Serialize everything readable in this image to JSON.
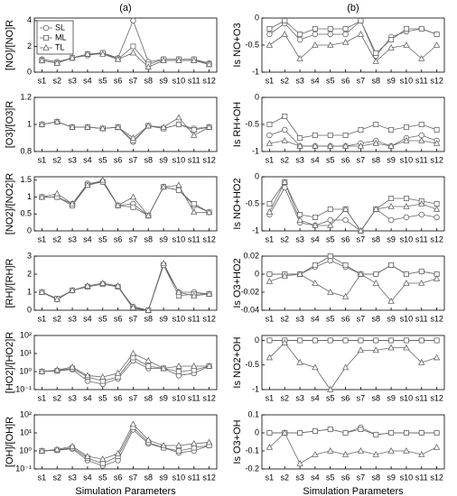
{
  "column_labels": [
    "(a)",
    "(b)"
  ],
  "chart_data": [
    {
      "type": "line",
      "ylabel": "[NO]/[NO]R",
      "categories": [
        "s1",
        "s2",
        "s3",
        "s4",
        "s5",
        "s6",
        "s7",
        "s8",
        "s9",
        "s10",
        "s11",
        "s12"
      ],
      "ylim": [
        0,
        4.2
      ],
      "yticks": [
        0,
        2,
        4
      ],
      "legend": "upper left",
      "series": [
        {
          "name": "SL",
          "marker": "circle",
          "color": "#666666",
          "values": [
            1,
            0.8,
            1.1,
            1.3,
            1.5,
            1.1,
            4,
            0.8,
            1,
            1,
            1,
            0.7
          ]
        },
        {
          "name": "ML",
          "marker": "square",
          "color": "#666666",
          "values": [
            0.9,
            0.7,
            1.1,
            1.4,
            1.5,
            1,
            2,
            0.6,
            1,
            1,
            1,
            0.6
          ]
        },
        {
          "name": "TL",
          "marker": "triangle",
          "color": "#666666",
          "values": [
            0.9,
            0.7,
            1.1,
            1.4,
            1.4,
            1,
            1.5,
            0.4,
            0.9,
            0.9,
            0.9,
            0.6
          ]
        }
      ]
    },
    {
      "type": "line",
      "ylabel": "[O3]/[O3]R",
      "categories": [
        "s1",
        "s2",
        "s3",
        "s4",
        "s5",
        "s6",
        "s7",
        "s8",
        "s9",
        "s10",
        "s11",
        "s12"
      ],
      "ylim": [
        0.8,
        1.2
      ],
      "yticks": [
        0.8,
        1,
        1.2
      ],
      "series": [
        {
          "name": "SL",
          "marker": "circle",
          "color": "#666666",
          "values": [
            1,
            1.02,
            0.98,
            0.98,
            0.97,
            0.98,
            0.87,
            0.99,
            0.97,
            1,
            0.97,
            0.98
          ]
        },
        {
          "name": "ML",
          "marker": "square",
          "color": "#666666",
          "values": [
            1,
            1.02,
            0.98,
            0.98,
            0.97,
            0.98,
            0.88,
            0.99,
            0.97,
            1,
            0.96,
            0.98
          ]
        },
        {
          "name": "TL",
          "marker": "triangle",
          "color": "#666666",
          "values": [
            1,
            1.02,
            0.98,
            0.98,
            0.97,
            0.98,
            0.9,
            0.99,
            0.98,
            1.05,
            0.92,
            0.98
          ]
        }
      ]
    },
    {
      "type": "line",
      "ylabel": "[NO2]/[NO2]R",
      "categories": [
        "s1",
        "s2",
        "s3",
        "s4",
        "s5",
        "s6",
        "s7",
        "s8",
        "s9",
        "s10",
        "s11",
        "s12"
      ],
      "ylim": [
        0,
        1.6
      ],
      "yticks": [
        0,
        0.5,
        1,
        1.5
      ],
      "series": [
        {
          "name": "SL",
          "marker": "circle",
          "color": "#666666",
          "values": [
            1,
            1,
            0.8,
            1.4,
            1.45,
            0.75,
            0.8,
            0.45,
            1.3,
            1.2,
            0.75,
            0.55
          ]
        },
        {
          "name": "ML",
          "marker": "square",
          "color": "#666666",
          "values": [
            1,
            1,
            0.75,
            1.35,
            1.45,
            0.75,
            0.7,
            0.45,
            1.3,
            1.2,
            0.8,
            0.55
          ]
        },
        {
          "name": "TL",
          "marker": "triangle",
          "color": "#666666",
          "values": [
            1,
            1.1,
            0.8,
            1.35,
            1.5,
            0.75,
            1,
            0.45,
            1.3,
            1.35,
            0.55,
            0.55
          ]
        }
      ]
    },
    {
      "type": "line",
      "ylabel": "[RH]/[RH]R",
      "categories": [
        "s1",
        "s2",
        "s3",
        "s4",
        "s5",
        "s6",
        "s7",
        "s8",
        "s9",
        "s10",
        "s11",
        "s12"
      ],
      "ylim": [
        0,
        3
      ],
      "yticks": [
        0,
        1,
        2,
        3
      ],
      "series": [
        {
          "name": "SL",
          "marker": "circle",
          "color": "#666666",
          "values": [
            1,
            0.6,
            1.1,
            1.3,
            1.45,
            1.3,
            0.2,
            0,
            2.5,
            1,
            1,
            0.9
          ]
        },
        {
          "name": "ML",
          "marker": "square",
          "color": "#666666",
          "values": [
            1,
            0.65,
            1.1,
            1.3,
            1.45,
            1.3,
            0.1,
            0,
            2.5,
            0.8,
            0.9,
            0.9
          ]
        },
        {
          "name": "TL",
          "marker": "triangle",
          "color": "#666666",
          "values": [
            1,
            0.6,
            1.1,
            1.35,
            1.5,
            1.35,
            0.15,
            0,
            2.6,
            1,
            0.8,
            0.9
          ]
        }
      ]
    },
    {
      "type": "line",
      "ylabel": "[HO2]/[HO2]R",
      "log": true,
      "categories": [
        "s1",
        "s2",
        "s3",
        "s4",
        "s5",
        "s6",
        "s7",
        "s8",
        "s9",
        "s10",
        "s11",
        "s12"
      ],
      "ylim": [
        0.1,
        100
      ],
      "yticks": [
        {
          "value": 0.1,
          "label": "10⁻¹"
        },
        {
          "value": 1,
          "label": "10⁰"
        },
        {
          "value": 10,
          "label": "10¹"
        },
        {
          "value": 100,
          "label": "10²"
        }
      ],
      "series": [
        {
          "name": "SL",
          "marker": "circle",
          "color": "#666666",
          "values": [
            1,
            1.1,
            1.3,
            0.3,
            0.2,
            0.4,
            4,
            1.5,
            1.5,
            0.6,
            0.8,
            2
          ]
        },
        {
          "name": "ML",
          "marker": "square",
          "color": "#666666",
          "values": [
            1,
            1.1,
            1.5,
            0.5,
            0.3,
            0.5,
            6,
            2,
            1.5,
            1,
            1.2,
            2
          ]
        },
        {
          "name": "TL",
          "marker": "triangle",
          "color": "#666666",
          "values": [
            1,
            1.2,
            1.8,
            0.6,
            0.5,
            0.8,
            10,
            4,
            1.5,
            2,
            2,
            2
          ]
        }
      ]
    },
    {
      "type": "line",
      "ylabel": "[OH]/[OH]R",
      "log": true,
      "xlabel": "Simulation Parameters",
      "categories": [
        "s1",
        "s2",
        "s3",
        "s4",
        "s5",
        "s6",
        "s7",
        "s8",
        "s9",
        "s10",
        "s11",
        "s12"
      ],
      "ylim": [
        0.1,
        100
      ],
      "yticks": [
        {
          "value": 0.1,
          "label": "10⁻¹"
        },
        {
          "value": 1,
          "label": "10⁰"
        },
        {
          "value": 10,
          "label": "10¹"
        },
        {
          "value": 100,
          "label": "10²"
        }
      ],
      "series": [
        {
          "name": "SL",
          "marker": "circle",
          "color": "#666666",
          "values": [
            1,
            1.1,
            1.3,
            0.3,
            0.15,
            0.3,
            15,
            2.5,
            1.5,
            0.8,
            1,
            2
          ]
        },
        {
          "name": "ML",
          "marker": "square",
          "color": "#666666",
          "values": [
            1,
            1.1,
            1.5,
            0.4,
            0.2,
            0.5,
            20,
            3,
            1.5,
            1,
            1.5,
            2
          ]
        },
        {
          "name": "TL",
          "marker": "triangle",
          "color": "#666666",
          "values": [
            1,
            1.2,
            1.8,
            0.5,
            0.35,
            0.7,
            30,
            4,
            2,
            2,
            2.5,
            3
          ]
        }
      ]
    },
    {
      "type": "line",
      "ylabel": "Is NO+O3",
      "categories": [
        "s1",
        "s2",
        "s3",
        "s4",
        "s5",
        "s6",
        "s7",
        "s8",
        "s9",
        "s10",
        "s11",
        "s12"
      ],
      "ylim": [
        -1,
        0
      ],
      "yticks": [
        -1,
        -0.5,
        0
      ],
      "series": [
        {
          "name": "SL",
          "marker": "circle",
          "color": "#666666",
          "values": [
            -0.3,
            -0.1,
            -0.4,
            -0.3,
            -0.3,
            -0.3,
            -0.05,
            -0.7,
            -0.35,
            -0.25,
            -0.2,
            -0.3
          ]
        },
        {
          "name": "ML",
          "marker": "square",
          "color": "#666666",
          "values": [
            -0.2,
            -0.05,
            -0.3,
            -0.2,
            -0.2,
            -0.2,
            -0.05,
            -0.65,
            -0.4,
            -0.2,
            -0.2,
            -0.3
          ]
        },
        {
          "name": "TL",
          "marker": "triangle",
          "color": "#666666",
          "values": [
            -0.5,
            -0.3,
            -0.75,
            -0.5,
            -0.5,
            -0.45,
            -0.3,
            -0.8,
            -0.55,
            -0.5,
            -0.75,
            -0.5
          ]
        }
      ]
    },
    {
      "type": "line",
      "ylabel": "Is RH+OH",
      "categories": [
        "s1",
        "s2",
        "s3",
        "s4",
        "s5",
        "s6",
        "s7",
        "s8",
        "s9",
        "s10",
        "s11",
        "s12"
      ],
      "ylim": [
        -1,
        0
      ],
      "yticks": [
        -1,
        -0.5,
        0
      ],
      "series": [
        {
          "name": "SL",
          "marker": "circle",
          "color": "#666666",
          "values": [
            -0.7,
            -0.6,
            -0.9,
            -0.9,
            -0.9,
            -0.9,
            -0.85,
            -0.8,
            -0.9,
            -0.75,
            -0.7,
            -0.8
          ]
        },
        {
          "name": "ML",
          "marker": "square",
          "color": "#666666",
          "values": [
            -0.5,
            -0.35,
            -0.75,
            -0.7,
            -0.7,
            -0.7,
            -0.6,
            -0.5,
            -0.6,
            -0.55,
            -0.5,
            -0.6
          ]
        },
        {
          "name": "TL",
          "marker": "triangle",
          "color": "#666666",
          "values": [
            -0.85,
            -0.8,
            -0.9,
            -0.9,
            -0.9,
            -0.9,
            -0.9,
            -0.85,
            -0.9,
            -0.8,
            -0.8,
            -0.85
          ]
        }
      ]
    },
    {
      "type": "line",
      "ylabel": "Is NO+HO2",
      "categories": [
        "s1",
        "s2",
        "s3",
        "s4",
        "s5",
        "s6",
        "s7",
        "s8",
        "s9",
        "s10",
        "s11",
        "s12"
      ],
      "ylim": [
        -1,
        0
      ],
      "yticks": [
        -1,
        -0.5,
        0
      ],
      "series": [
        {
          "name": "SL",
          "marker": "circle",
          "color": "#666666",
          "values": [
            -0.7,
            -0.2,
            -0.85,
            -0.9,
            -0.8,
            -0.8,
            -1,
            -0.6,
            -0.8,
            -0.75,
            -0.7,
            -0.75
          ]
        },
        {
          "name": "ML",
          "marker": "square",
          "color": "#666666",
          "values": [
            -0.5,
            -0.1,
            -0.7,
            -0.75,
            -0.6,
            -0.6,
            -1,
            -0.6,
            -0.4,
            -0.4,
            -0.45,
            -0.5
          ]
        },
        {
          "name": "TL",
          "marker": "triangle",
          "color": "#666666",
          "values": [
            -0.65,
            -0.1,
            -0.8,
            -0.9,
            -0.9,
            -0.6,
            -1,
            -0.6,
            -0.55,
            -0.55,
            -0.5,
            -0.6
          ]
        }
      ]
    },
    {
      "type": "line",
      "ylabel": "Is O3+HO2",
      "categories": [
        "s1",
        "s2",
        "s3",
        "s4",
        "s5",
        "s6",
        "s7",
        "s8",
        "s9",
        "s10",
        "s11",
        "s12"
      ],
      "ylim": [
        -0.04,
        0.02
      ],
      "yticks": [
        -0.04,
        -0.02,
        0,
        0.02
      ],
      "series": [
        {
          "name": "SL",
          "marker": "circle",
          "color": "#666666",
          "values": [
            0,
            0,
            0,
            0.008,
            0.015,
            0.008,
            0,
            0,
            0.01,
            0,
            0.003,
            0
          ]
        },
        {
          "name": "ML",
          "marker": "square",
          "color": "#666666",
          "values": [
            0,
            0,
            0,
            0.01,
            0.02,
            0.01,
            0,
            0,
            0.01,
            0,
            0.003,
            0
          ]
        },
        {
          "name": "TL",
          "marker": "triangle",
          "color": "#666666",
          "values": [
            -0.008,
            -0.002,
            0,
            -0.01,
            -0.02,
            -0.025,
            0,
            -0.01,
            -0.03,
            -0.01,
            -0.01,
            -0.005
          ]
        }
      ]
    },
    {
      "type": "line",
      "ylabel": "Is NO2+OH",
      "categories": [
        "s1",
        "s2",
        "s3",
        "s4",
        "s5",
        "s6",
        "s7",
        "s8",
        "s9",
        "s10",
        "s11",
        "s12"
      ],
      "ylim": [
        -1,
        0.1
      ],
      "yticks": [
        -1,
        -0.5,
        0
      ],
      "series": [
        {
          "name": "SL",
          "marker": "circle",
          "color": "#666666",
          "values": [
            0,
            0,
            0,
            0,
            0,
            0,
            0,
            0,
            0,
            0,
            0,
            0
          ]
        },
        {
          "name": "ML",
          "marker": "square",
          "color": "#666666",
          "values": [
            0,
            0,
            0,
            0,
            0,
            0,
            0,
            0,
            0,
            0,
            0,
            0
          ]
        },
        {
          "name": "TL",
          "marker": "triangle",
          "color": "#666666",
          "values": [
            -0.35,
            -0.05,
            -0.45,
            -0.55,
            -1,
            -0.55,
            -0.2,
            -0.2,
            -0.15,
            -0.15,
            -0.45,
            -0.35
          ]
        }
      ]
    },
    {
      "type": "line",
      "ylabel": "Is O3+OH",
      "xlabel": "Simulation Parameters",
      "categories": [
        "s1",
        "s2",
        "s3",
        "s4",
        "s5",
        "s6",
        "s7",
        "s8",
        "s9",
        "s10",
        "s11",
        "s12"
      ],
      "ylim": [
        -0.2,
        0.1
      ],
      "yticks": [
        -0.2,
        -0.1,
        0,
        0.1
      ],
      "series": [
        {
          "name": "SL",
          "marker": "circle",
          "color": "#666666",
          "values": [
            0,
            0,
            0,
            0.01,
            0.02,
            0,
            0.03,
            -0.01,
            0,
            0,
            0,
            0
          ]
        },
        {
          "name": "ML",
          "marker": "square",
          "color": "#666666",
          "values": [
            0,
            0,
            0,
            0.01,
            0.02,
            0,
            0.02,
            -0.01,
            0,
            0,
            0,
            0
          ]
        },
        {
          "name": "TL",
          "marker": "triangle",
          "color": "#666666",
          "values": [
            -0.08,
            0,
            -0.17,
            -0.12,
            -0.1,
            -0.12,
            -0.1,
            -0.12,
            -0.1,
            -0.1,
            -0.12,
            -0.08
          ]
        }
      ]
    }
  ]
}
